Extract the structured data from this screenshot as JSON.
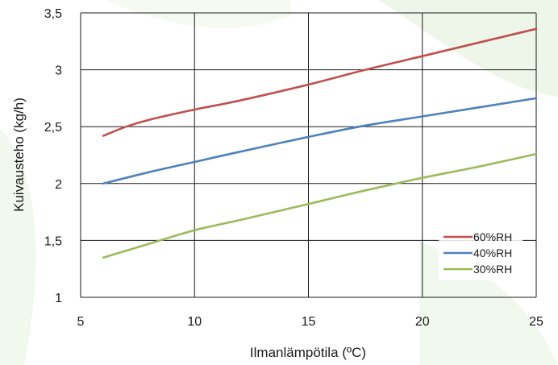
{
  "chart_data": {
    "type": "line",
    "title": "",
    "xlabel": "Ilmanlämpötila (ºC)",
    "ylabel": "Kuivausteho (kg/h)",
    "xlim": [
      5,
      25
    ],
    "ylim": [
      1,
      3.5
    ],
    "xticks": [
      5,
      10,
      15,
      20,
      25
    ],
    "xtick_labels": [
      "5",
      "10",
      "15",
      "20",
      "25"
    ],
    "yticks": [
      1,
      1.5,
      2,
      2.5,
      3,
      3.5
    ],
    "ytick_labels": [
      "1",
      "1,5",
      "2",
      "2,5",
      "3",
      "3,5"
    ],
    "grid": true,
    "legend_position": "bottom-right",
    "series": [
      {
        "name": "60%RH",
        "color": "#c0504d",
        "x": [
          6,
          7,
          8,
          10,
          12,
          15,
          17.5,
          20,
          22.5,
          25
        ],
        "y": [
          2.42,
          2.5,
          2.56,
          2.65,
          2.73,
          2.87,
          3.0,
          3.12,
          3.24,
          3.36
        ]
      },
      {
        "name": "40%RH",
        "color": "#4f81bd",
        "x": [
          6,
          8,
          10,
          12,
          15,
          17.5,
          20,
          22.5,
          25
        ],
        "y": [
          2.0,
          2.1,
          2.19,
          2.28,
          2.41,
          2.51,
          2.59,
          2.67,
          2.75
        ]
      },
      {
        "name": "30%RH",
        "color": "#9bbb59",
        "x": [
          6,
          8,
          10,
          12,
          15,
          17.5,
          20,
          22.5,
          25
        ],
        "y": [
          1.35,
          1.47,
          1.59,
          1.68,
          1.82,
          1.94,
          2.05,
          2.15,
          2.26
        ]
      }
    ]
  }
}
